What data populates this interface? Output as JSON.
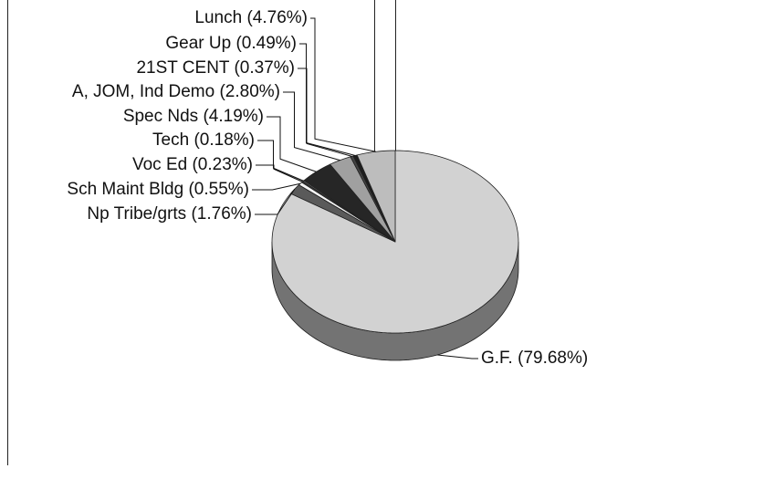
{
  "chart_data": {
    "type": "pie3d",
    "values": [
      79.68,
      1.76,
      0.55,
      0.23,
      0.18,
      4.19,
      2.8,
      0.37,
      0.49,
      4.76
    ],
    "value_labels": [
      "G.F. (79.68%)",
      "Np Tribe/grts (1.76%)",
      "Sch Maint Bldg (0.55%)",
      "Voc Ed (0.23%)",
      "Tech (0.18%)",
      "Spec Nds (4.19%)",
      "A, JOM, Ind Demo (2.80%)",
      "21ST CENT (0.37%)",
      "Gear Up (0.49%)",
      "Lunch (4.76%)"
    ],
    "colors": [
      "#d2d2d2",
      "#5a5a5a",
      "#f4f4f4",
      "#3a3a3a",
      "#8a8a8a",
      "#262626",
      "#a0a0a0",
      "#444444",
      "#1e1e1e",
      "#bdbdbd"
    ]
  }
}
